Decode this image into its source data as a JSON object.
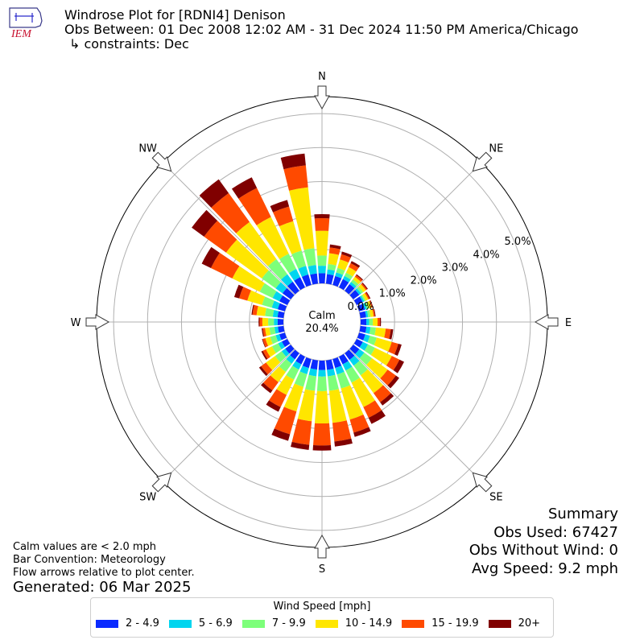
{
  "header": {
    "title": "Windrose Plot for [RDNI4] Denison",
    "obs_between": "Obs Between: 01 Dec 2008 12:02 AM - 31 Dec 2024 11:50 PM America/Chicago",
    "constraints": "↳ constraints: Dec",
    "logo_text": "IEM"
  },
  "notes": {
    "calm": "Calm values are < 2.0 mph",
    "convention": "Bar Convention: Meteorology",
    "arrows": "Flow arrows relative to plot center.",
    "generated": "Generated: 06 Mar 2025"
  },
  "summary": {
    "title": "Summary",
    "obs_used": "Obs Used: 67427",
    "obs_without_wind": "Obs Without Wind: 0",
    "avg_speed": "Avg Speed: 9.2 mph"
  },
  "legend": {
    "title": "Wind Speed [mph]",
    "bins": [
      {
        "label": "2 - 4.9",
        "color": "#0a2aff"
      },
      {
        "label": "5 - 6.9",
        "color": "#00d5ef"
      },
      {
        "label": "7 - 9.9",
        "color": "#7dff7a"
      },
      {
        "label": "10 - 14.9",
        "color": "#ffe600"
      },
      {
        "label": "15 - 19.9",
        "color": "#ff4a00"
      },
      {
        "label": "20+",
        "color": "#800000"
      }
    ]
  },
  "chart_data": {
    "type": "windrose",
    "calm_label": "Calm",
    "calm_value": "20.4%",
    "r_offset": 0.0,
    "r_max": 5.5,
    "radial_ticks": [
      0.0,
      1.0,
      2.0,
      3.0,
      4.0,
      5.0
    ],
    "radial_tick_labels": [
      "0.0%",
      "1.0%",
      "2.0%",
      "3.0%",
      "4.0%",
      "5.0%"
    ],
    "compass_labels": [
      "N",
      "NE",
      "E",
      "SE",
      "S",
      "SW",
      "W",
      "NW"
    ],
    "bin_labels": [
      "2 - 4.9",
      "5 - 6.9",
      "7 - 9.9",
      "10 - 14.9",
      "15 - 19.9",
      "20+"
    ],
    "directions_deg": [
      0,
      10,
      20,
      30,
      40,
      50,
      60,
      70,
      80,
      90,
      100,
      110,
      120,
      130,
      140,
      150,
      160,
      170,
      180,
      190,
      200,
      210,
      220,
      230,
      240,
      250,
      260,
      270,
      280,
      290,
      300,
      310,
      320,
      330,
      340,
      350
    ],
    "cumulative_pct": [
      [
        0.3,
        0.52,
        0.82,
        1.55,
        1.92,
        2.04
      ],
      [
        0.28,
        0.42,
        0.58,
        0.9,
        1.07,
        1.16
      ],
      [
        0.27,
        0.38,
        0.52,
        0.78,
        0.94,
        1.02
      ],
      [
        0.27,
        0.37,
        0.48,
        0.66,
        0.79,
        0.86
      ],
      [
        0.24,
        0.32,
        0.41,
        0.51,
        0.57,
        0.6
      ],
      [
        0.22,
        0.29,
        0.36,
        0.46,
        0.5,
        0.53
      ],
      [
        0.2,
        0.25,
        0.3,
        0.38,
        0.42,
        0.45
      ],
      [
        0.18,
        0.24,
        0.3,
        0.38,
        0.41,
        0.43
      ],
      [
        0.17,
        0.23,
        0.3,
        0.39,
        0.43,
        0.45
      ],
      [
        0.17,
        0.25,
        0.36,
        0.5,
        0.57,
        0.6
      ],
      [
        0.18,
        0.3,
        0.46,
        0.75,
        0.9,
        0.97
      ],
      [
        0.19,
        0.33,
        0.54,
        1.0,
        1.2,
        1.3
      ],
      [
        0.2,
        0.37,
        0.6,
        1.15,
        1.4,
        1.55
      ],
      [
        0.22,
        0.4,
        0.68,
        1.25,
        1.55,
        1.67
      ],
      [
        0.24,
        0.45,
        0.8,
        1.45,
        1.78,
        1.9
      ],
      [
        0.25,
        0.45,
        0.85,
        1.65,
        2.0,
        2.2
      ],
      [
        0.27,
        0.47,
        0.9,
        1.85,
        2.25,
        2.38
      ],
      [
        0.28,
        0.47,
        0.9,
        1.85,
        2.4,
        2.55
      ],
      [
        0.28,
        0.47,
        0.9,
        1.85,
        2.5,
        2.65
      ],
      [
        0.27,
        0.47,
        0.9,
        1.8,
        2.5,
        2.65
      ],
      [
        0.27,
        0.46,
        0.85,
        1.6,
        2.3,
        2.5
      ],
      [
        0.25,
        0.42,
        0.75,
        1.25,
        1.65,
        1.8
      ],
      [
        0.22,
        0.38,
        0.68,
        1.05,
        1.35,
        1.45
      ],
      [
        0.2,
        0.33,
        0.57,
        0.9,
        1.08,
        1.15
      ],
      [
        0.18,
        0.3,
        0.5,
        0.7,
        0.8,
        0.85
      ],
      [
        0.17,
        0.28,
        0.45,
        0.6,
        0.68,
        0.7
      ],
      [
        0.17,
        0.27,
        0.42,
        0.55,
        0.62,
        0.65
      ],
      [
        0.17,
        0.28,
        0.45,
        0.62,
        0.7,
        0.73
      ],
      [
        0.18,
        0.32,
        0.55,
        0.8,
        0.92,
        0.95
      ],
      [
        0.22,
        0.4,
        0.7,
        1.15,
        1.4,
        1.55
      ],
      [
        0.26,
        0.48,
        0.9,
        1.8,
        2.5,
        2.8
      ],
      [
        0.3,
        0.55,
        1.05,
        2.35,
        3.15,
        3.6
      ],
      [
        0.33,
        0.6,
        1.15,
        2.5,
        3.55,
        4.05
      ],
      [
        0.33,
        0.6,
        1.1,
        2.3,
        3.25,
        3.6
      ],
      [
        0.32,
        0.58,
        1.05,
        1.95,
        2.4,
        2.6
      ],
      [
        0.3,
        0.55,
        1.05,
        2.85,
        3.5,
        3.85
      ]
    ]
  }
}
